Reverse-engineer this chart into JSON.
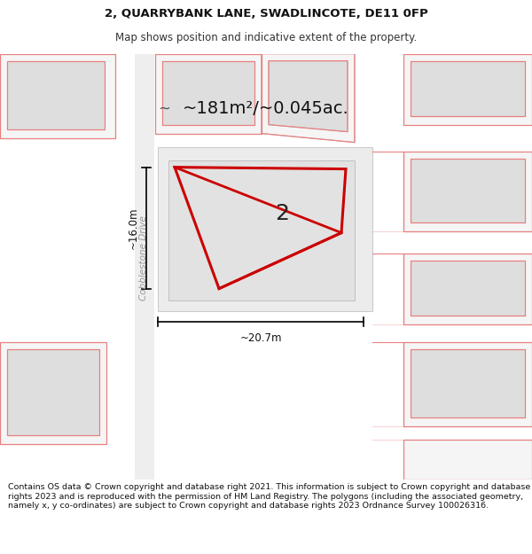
{
  "title": "2, QUARRYBANK LANE, SWADLINCOTE, DE11 0FP",
  "subtitle": "Map shows position and indicative extent of the property.",
  "area_label": "~181m²/~0.045ac.",
  "number_label": "2",
  "width_label": "~20.7m",
  "height_label": "~16.0m",
  "street_label": "Cobblestone Drive",
  "footer": "Contains OS data © Crown copyright and database right 2021. This information is subject to Crown copyright and database rights 2023 and is reproduced with the permission of HM Land Registry. The polygons (including the associated geometry, namely x, y co-ordinates) are subject to Crown copyright and database rights 2023 Ordnance Survey 100026316.",
  "bg_color": "#ffffff",
  "title_fontsize": 9.5,
  "subtitle_fontsize": 8.5,
  "footer_fontsize": 6.8,
  "map_bg": "#ffffff",
  "building_fill": "#dedede",
  "building_edge": "#bbbbbb",
  "road_fill": "#efefef",
  "red_line": "#cc0000",
  "red_fill": "none",
  "pink_line": "#e88080",
  "pink_fill": "#f5f5f5"
}
